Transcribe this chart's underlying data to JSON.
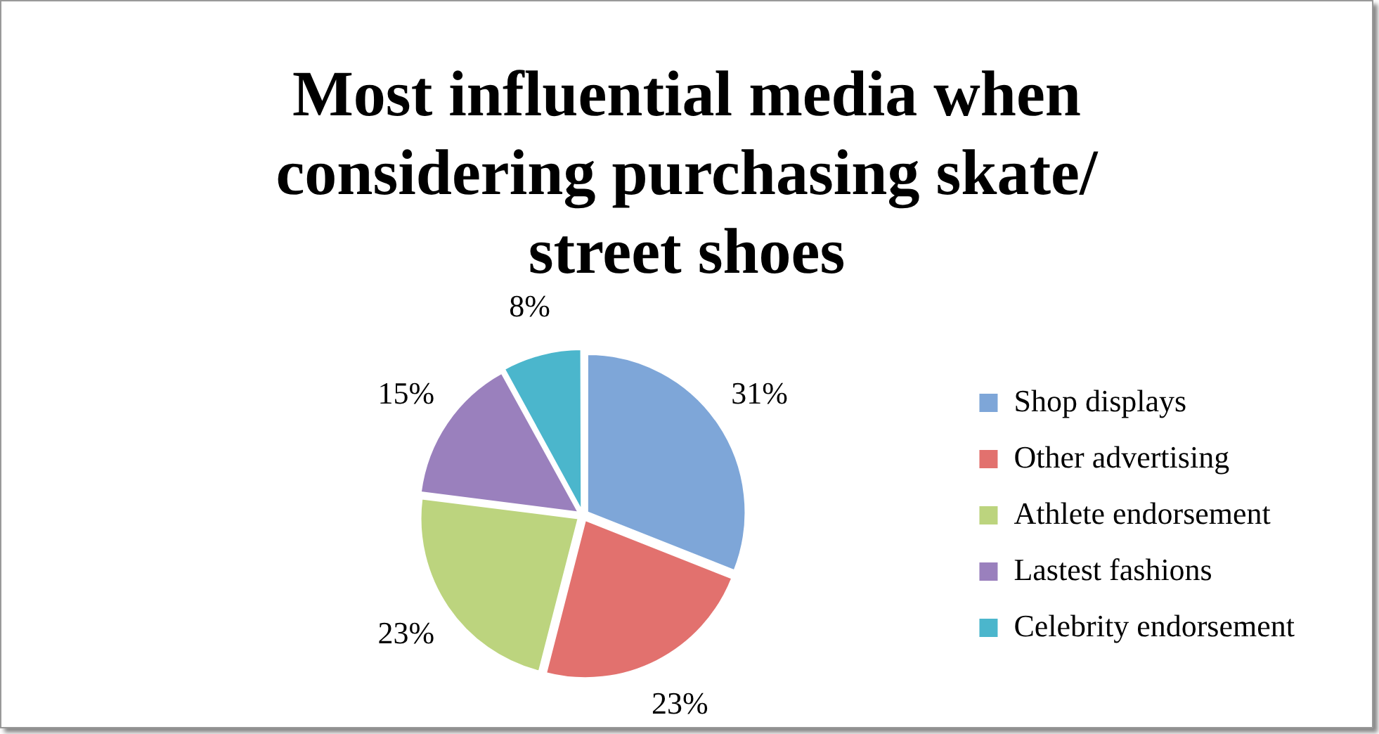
{
  "chart_data": {
    "type": "pie",
    "title": "Most influential media when considering purchasing skate/ street shoes",
    "categories": [
      "Shop displays",
      "Other advertising",
      "Athlete endorsement",
      "Lastest fashions",
      "Celebrity endorsement"
    ],
    "values": [
      31,
      23,
      23,
      15,
      8
    ],
    "value_labels": [
      "31%",
      "23%",
      "23%",
      "15%",
      "8%"
    ],
    "colors": [
      "#7ea6d8",
      "#e2716e",
      "#bcd47e",
      "#9a80bd",
      "#4bb6cc"
    ],
    "legend": "right"
  }
}
